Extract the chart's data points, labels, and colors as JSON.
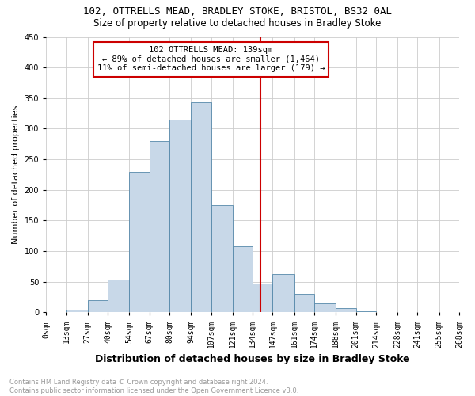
{
  "title1": "102, OTTRELLS MEAD, BRADLEY STOKE, BRISTOL, BS32 0AL",
  "title2": "Size of property relative to detached houses in Bradley Stoke",
  "xlabel": "Distribution of detached houses by size in Bradley Stoke",
  "ylabel": "Number of detached properties",
  "footnote": "Contains HM Land Registry data © Crown copyright and database right 2024.\nContains public sector information licensed under the Open Government Licence v3.0.",
  "bin_labels": [
    "0sqm",
    "13sqm",
    "27sqm",
    "40sqm",
    "54sqm",
    "67sqm",
    "80sqm",
    "94sqm",
    "107sqm",
    "121sqm",
    "134sqm",
    "147sqm",
    "161sqm",
    "174sqm",
    "188sqm",
    "201sqm",
    "214sqm",
    "228sqm",
    "241sqm",
    "255sqm",
    "268sqm"
  ],
  "bar_values": [
    1,
    5,
    20,
    53,
    230,
    280,
    315,
    343,
    175,
    108,
    47,
    62,
    30,
    15,
    7,
    2,
    0,
    0,
    1,
    0
  ],
  "bar_color": "#c8d8e8",
  "bar_edge_color": "#5588aa",
  "vline_x": 139,
  "vline_color": "#cc0000",
  "annotation_text": "102 OTTRELLS MEAD: 139sqm\n← 89% of detached houses are smaller (1,464)\n11% of semi-detached houses are larger (179) →",
  "annotation_box_color": "#ffffff",
  "annotation_box_edge": "#cc0000",
  "ylim": [
    0,
    450
  ],
  "bin_edges": [
    0,
    13,
    27,
    40,
    54,
    67,
    80,
    94,
    107,
    121,
    134,
    147,
    161,
    174,
    188,
    201,
    214,
    228,
    241,
    255,
    268
  ],
  "background_color": "#ffffff",
  "grid_color": "#cccccc",
  "yticks": [
    0,
    50,
    100,
    150,
    200,
    250,
    300,
    350,
    400,
    450
  ],
  "title1_fontsize": 9,
  "title2_fontsize": 8.5,
  "ylabel_fontsize": 8,
  "xlabel_fontsize": 9,
  "tick_fontsize": 7,
  "annot_fontsize": 7.5,
  "footnote_fontsize": 6,
  "footnote_color": "#999999"
}
